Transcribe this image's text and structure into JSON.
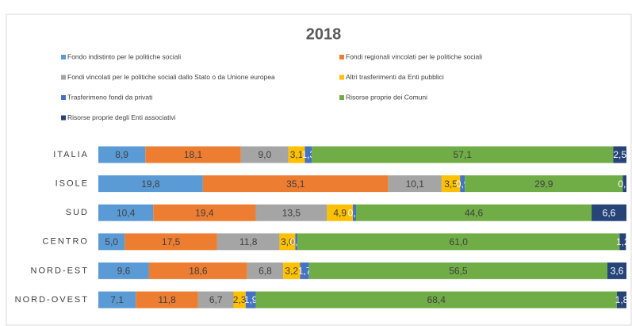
{
  "chart_data": {
    "type": "stacked_bar_horizontal",
    "title": "2018",
    "categories": [
      "ITALIA",
      "ISOLE",
      "SUD",
      "CENTRO",
      "NORD-EST",
      "NORD-OVEST"
    ],
    "xlim": [
      0,
      100
    ],
    "legend": "top",
    "series": [
      {
        "name": "Fondo indistinto per le politiche sociali",
        "color": "#5b9bd5",
        "values": [
          8.9,
          19.8,
          10.4,
          5.0,
          9.6,
          7.1
        ],
        "value_labels": [
          "8,9",
          "19,8",
          "10,4",
          "5,0",
          "9,6",
          "7,1"
        ]
      },
      {
        "name": "Fondi regionali vincolati per le politiche sociali",
        "color": "#ed7d31",
        "values": [
          18.1,
          35.1,
          19.4,
          17.5,
          18.6,
          11.8
        ],
        "value_labels": [
          "18,1",
          "35,1",
          "19,4",
          "17,5",
          "18,6",
          "11,8"
        ]
      },
      {
        "name": "Fondi vincolati  per le politiche sociali  dallo Stato o da Unione europea",
        "color": "#a5a5a5",
        "values": [
          9.0,
          10.1,
          13.5,
          11.8,
          6.8,
          6.7
        ],
        "value_labels": [
          "9,0",
          "10,1",
          "13,5",
          "11,8",
          "6,8",
          "6,7"
        ]
      },
      {
        "name": "Altri trasferimenti da Enti pubblici",
        "color": "#ffc000",
        "values": [
          3.1,
          3.5,
          4.9,
          3.0,
          3.2,
          2.3
        ],
        "value_labels": [
          "3,1",
          "3,5",
          "4,9",
          "3,0",
          "3,2",
          "2,3"
        ]
      },
      {
        "name": "Trasferimeno fondi  da privati",
        "color": "#4472c4",
        "values": [
          1.3,
          0.9,
          0.6,
          0.4,
          1.7,
          1.9
        ],
        "value_labels": [
          "1,3",
          "0,9",
          "0,6",
          "0,4",
          "1,7",
          "1,9"
        ]
      },
      {
        "name": "Risorse proprie dei Comuni",
        "color": "#70ad47",
        "values": [
          57.1,
          29.9,
          44.6,
          61.0,
          56.5,
          68.4
        ],
        "value_labels": [
          "57,1",
          "29,9",
          "44,6",
          "61,0",
          "56,5",
          "68,4"
        ]
      },
      {
        "name": "Risorse proprie degli Enti associativi",
        "color": "#264478",
        "values": [
          2.5,
          0.7,
          6.6,
          1.2,
          3.6,
          1.8
        ],
        "value_labels": [
          "2,5",
          "0,7",
          "6,6",
          "1,2",
          "3,6",
          "1,8"
        ]
      }
    ]
  }
}
